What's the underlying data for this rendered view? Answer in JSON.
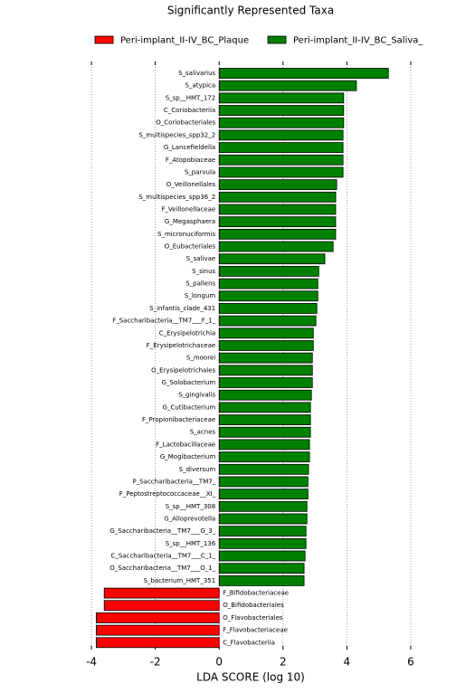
{
  "chart_data": {
    "type": "hbar",
    "title": "Significantly Represented Taxa",
    "xlabel": "LDA SCORE (log 10)",
    "categories": [
      "S_salivarius",
      "S_atypica",
      "S_sp__HMT_172",
      "C_Coriobacteriia",
      "O_Coriobacteriales",
      "S_multispecies_spp32_2",
      "G_Lancefieldella",
      "F_Atopobiaceae",
      "S_parvula",
      "O_Veillonellales",
      "S_multispecies_spp36_2",
      "F_Veillonellaceae",
      "G_Megasphaera",
      "S_micronuciformis",
      "O_Eubacteriales",
      "S_salivae",
      "S_sinus",
      "S_pallens",
      "S_longum",
      "S_infantis_clade_431",
      "F_Saccharibacteria__TM7___F_1_",
      "C_Erysipelotrichia",
      "F_Erysipelotrichaceae",
      "S_moorei",
      "O_Erysipelotrichales",
      "G_Solobacterium",
      "S_gingivalis",
      "G_Cutibacterium",
      "F_Propionibacteriaceae",
      "S_acnes",
      "F_Lactobacillaceae",
      "G_Mogibacterium",
      "S_diversum",
      "P_Saccharibacteria__TM7_",
      "F_Peptostreptococcaceae__XI_",
      "S_sp__HMT_308",
      "G_Alloprevotella",
      "G_Saccharibacteria__TM7___G_3_",
      "S_sp__HMT_136",
      "C_Saccharibacteria__TM7___C_1_",
      "O_Saccharibacteria__TM7___O_1_",
      "S_bacterium_HMT_351",
      "F_Bifidobacteriaceae",
      "O_Bifidobacteriales",
      "O_Flavobacteriales",
      "F_Flavobacteriaceae",
      "C_Flavobacteriia"
    ],
    "series": [
      {
        "name": "Peri-implant_II-IV_BC_Plaque",
        "color": "#ff0000",
        "values": [
          null,
          null,
          null,
          null,
          null,
          null,
          null,
          null,
          null,
          null,
          null,
          null,
          null,
          null,
          null,
          null,
          null,
          null,
          null,
          null,
          null,
          null,
          null,
          null,
          null,
          null,
          null,
          null,
          null,
          null,
          null,
          null,
          null,
          null,
          null,
          null,
          null,
          null,
          null,
          null,
          null,
          null,
          -3.6,
          -3.6,
          -3.85,
          -3.85,
          -3.85
        ]
      },
      {
        "name": "Peri-implant_II-IV_BC_Saliva_",
        "color": "#008000",
        "values": [
          5.3,
          4.3,
          3.9,
          3.9,
          3.9,
          3.88,
          3.88,
          3.88,
          3.88,
          3.68,
          3.65,
          3.65,
          3.65,
          3.65,
          3.57,
          3.31,
          3.12,
          3.09,
          3.09,
          3.06,
          3.03,
          2.95,
          2.95,
          2.92,
          2.92,
          2.92,
          2.89,
          2.86,
          2.86,
          2.86,
          2.83,
          2.83,
          2.8,
          2.78,
          2.78,
          2.75,
          2.75,
          2.72,
          2.72,
          2.69,
          2.66,
          2.66,
          null,
          null,
          null,
          null,
          null
        ]
      }
    ],
    "xlim": [
      -4.2,
      6.2
    ],
    "xticks": [
      -4,
      -2,
      0,
      2,
      4,
      6
    ],
    "grid": true
  }
}
